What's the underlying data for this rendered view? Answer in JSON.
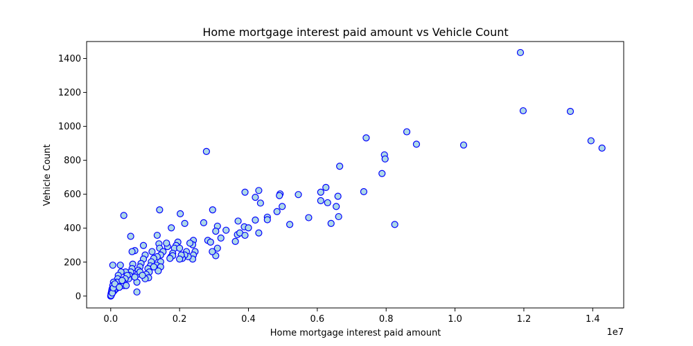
{
  "chart_data": {
    "type": "scatter",
    "title": "Home mortgage interest paid amount vs Vehicle Count",
    "xlabel": "Home mortgage interest paid amount",
    "ylabel": "Vehicle Count",
    "x_offset_label": "1e7",
    "xlim": [
      -700000,
      14900000
    ],
    "ylim": [
      -70,
      1500
    ],
    "x_ticks": [
      0,
      2000000,
      4000000,
      6000000,
      8000000,
      10000000,
      12000000,
      14000000
    ],
    "x_tick_labels": [
      "0.0",
      "0.2",
      "0.4",
      "0.6",
      "0.8",
      "1.0",
      "1.2",
      "1.4"
    ],
    "y_ticks": [
      0,
      200,
      400,
      600,
      800,
      1000,
      1200,
      1400
    ],
    "y_tick_labels": [
      "0",
      "200",
      "400",
      "600",
      "800",
      "1000",
      "1200",
      "1400"
    ],
    "marker_face_color": "#add8e6",
    "marker_edge_color": "#0000ff",
    "grid": false,
    "points": [
      [
        11900000,
        1435
      ],
      [
        11980000,
        1092
      ],
      [
        13350000,
        1088
      ],
      [
        13950000,
        915
      ],
      [
        14270000,
        872
      ],
      [
        10250000,
        890
      ],
      [
        8600000,
        968
      ],
      [
        8880000,
        895
      ],
      [
        7950000,
        832
      ],
      [
        7970000,
        808
      ],
      [
        7880000,
        722
      ],
      [
        7420000,
        932
      ],
      [
        8250000,
        422
      ],
      [
        7350000,
        615
      ],
      [
        6650000,
        765
      ],
      [
        6250000,
        640
      ],
      [
        6100000,
        612
      ],
      [
        6600000,
        588
      ],
      [
        6300000,
        550
      ],
      [
        6100000,
        562
      ],
      [
        6550000,
        528
      ],
      [
        6620000,
        468
      ],
      [
        6400000,
        428
      ],
      [
        5450000,
        598
      ],
      [
        5750000,
        462
      ],
      [
        5200000,
        422
      ],
      [
        4920000,
        602
      ],
      [
        4900000,
        592
      ],
      [
        4980000,
        528
      ],
      [
        4830000,
        498
      ],
      [
        4550000,
        465
      ],
      [
        4550000,
        450
      ],
      [
        4300000,
        622
      ],
      [
        4200000,
        582
      ],
      [
        4350000,
        548
      ],
      [
        4200000,
        448
      ],
      [
        4300000,
        372
      ],
      [
        3900000,
        612
      ],
      [
        3880000,
        408
      ],
      [
        4000000,
        402
      ],
      [
        3700000,
        442
      ],
      [
        3680000,
        362
      ],
      [
        3750000,
        372
      ],
      [
        3900000,
        358
      ],
      [
        3620000,
        322
      ],
      [
        3350000,
        388
      ],
      [
        3100000,
        412
      ],
      [
        3050000,
        382
      ],
      [
        3200000,
        342
      ],
      [
        3100000,
        282
      ],
      [
        3050000,
        238
      ],
      [
        2960000,
        508
      ],
      [
        2950000,
        262
      ],
      [
        2780000,
        852
      ],
      [
        2700000,
        432
      ],
      [
        2820000,
        328
      ],
      [
        2900000,
        318
      ],
      [
        2400000,
        328
      ],
      [
        2380000,
        302
      ],
      [
        2300000,
        312
      ],
      [
        2450000,
        262
      ],
      [
        2400000,
        242
      ],
      [
        2380000,
        218
      ],
      [
        2200000,
        262
      ],
      [
        2250000,
        232
      ],
      [
        2150000,
        242
      ],
      [
        2080000,
        222
      ],
      [
        2050000,
        242
      ],
      [
        2000000,
        218
      ],
      [
        2150000,
        428
      ],
      [
        2020000,
        485
      ],
      [
        1950000,
        318
      ],
      [
        1900000,
        298
      ],
      [
        1850000,
        282
      ],
      [
        2000000,
        282
      ],
      [
        1800000,
        252
      ],
      [
        1750000,
        232
      ],
      [
        1800000,
        238
      ],
      [
        1650000,
        292
      ],
      [
        1620000,
        312
      ],
      [
        1720000,
        222
      ],
      [
        1760000,
        402
      ],
      [
        1420000,
        508
      ],
      [
        1350000,
        358
      ],
      [
        1400000,
        308
      ],
      [
        1420000,
        282
      ],
      [
        1520000,
        262
      ],
      [
        1450000,
        242
      ],
      [
        1350000,
        232
      ],
      [
        1450000,
        202
      ],
      [
        1330000,
        182
      ],
      [
        1450000,
        172
      ],
      [
        1380000,
        148
      ],
      [
        1200000,
        262
      ],
      [
        1250000,
        222
      ],
      [
        1180000,
        202
      ],
      [
        1150000,
        178
      ],
      [
        1080000,
        162
      ],
      [
        1120000,
        142
      ],
      [
        1030000,
        128
      ],
      [
        1100000,
        108
      ],
      [
        1000000,
        102
      ],
      [
        1000000,
        242
      ],
      [
        950000,
        298
      ],
      [
        950000,
        218
      ],
      [
        880000,
        192
      ],
      [
        850000,
        172
      ],
      [
        800000,
        152
      ],
      [
        780000,
        128
      ],
      [
        760000,
        82
      ],
      [
        760000,
        24
      ],
      [
        700000,
        268
      ],
      [
        580000,
        352
      ],
      [
        620000,
        262
      ],
      [
        640000,
        188
      ],
      [
        620000,
        162
      ],
      [
        580000,
        142
      ],
      [
        540000,
        122
      ],
      [
        520000,
        102
      ],
      [
        380000,
        475
      ],
      [
        430000,
        142
      ],
      [
        480000,
        122
      ],
      [
        420000,
        102
      ],
      [
        360000,
        82
      ],
      [
        380000,
        62
      ],
      [
        280000,
        182
      ],
      [
        300000,
        142
      ],
      [
        220000,
        122
      ],
      [
        200000,
        102
      ],
      [
        180000,
        82
      ],
      [
        160000,
        62
      ],
      [
        120000,
        52
      ],
      [
        90000,
        42
      ],
      [
        60000,
        182
      ],
      [
        80000,
        82
      ],
      [
        60000,
        62
      ],
      [
        40000,
        42
      ],
      [
        30000,
        32
      ],
      [
        20000,
        22
      ],
      [
        10000,
        12
      ],
      [
        5000,
        2
      ],
      [
        0,
        0
      ],
      [
        150000,
        42
      ],
      [
        100000,
        32
      ],
      [
        60000,
        22
      ],
      [
        30000,
        12
      ],
      [
        20000,
        8
      ],
      [
        10000,
        4
      ],
      [
        45000,
        18
      ],
      [
        75000,
        48
      ],
      [
        120000,
        72
      ],
      [
        250000,
        52
      ],
      [
        330000,
        92
      ],
      [
        450000,
        62
      ],
      [
        700000,
        112
      ],
      [
        850000,
        142
      ],
      [
        920000,
        122
      ],
      [
        1250000,
        172
      ]
    ]
  }
}
